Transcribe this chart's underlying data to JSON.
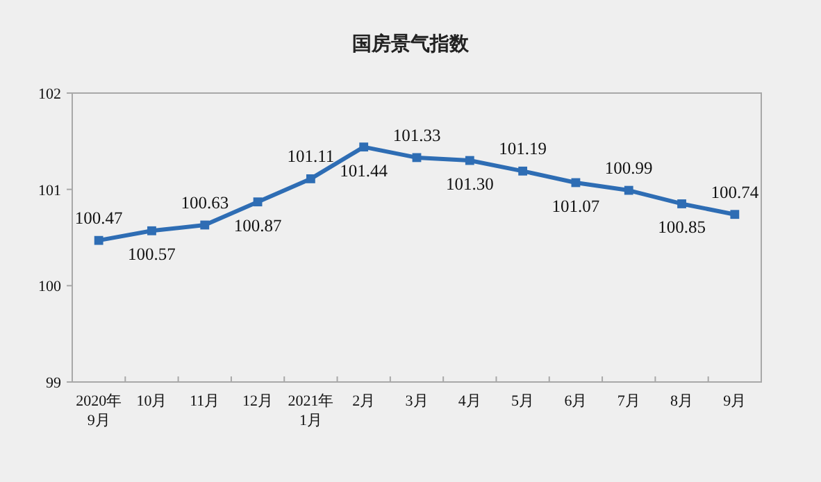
{
  "chart_data": {
    "type": "line",
    "title": "国房景气指数",
    "categories": [
      "2020年\n9月",
      "10月",
      "11月",
      "12月",
      "2021年\n1月",
      "2月",
      "3月",
      "4月",
      "5月",
      "6月",
      "7月",
      "8月",
      "9月"
    ],
    "series": [
      {
        "color": "#2e6db4",
        "values": [
          100.47,
          100.57,
          100.63,
          100.87,
          101.11,
          101.44,
          101.33,
          101.3,
          101.19,
          101.07,
          100.99,
          100.85,
          100.74
        ],
        "value_labels": [
          "100.47",
          "100.57",
          "100.63",
          "100.87",
          "101.11",
          "101.44",
          "101.33",
          "101.30",
          "101.19",
          "101.07",
          "100.99",
          "100.85",
          "100.74"
        ]
      }
    ],
    "ylim": [
      99,
      102
    ],
    "yticks": [
      99,
      100,
      101,
      102
    ],
    "grid": false,
    "marker": "square",
    "line_style": "solid"
  }
}
